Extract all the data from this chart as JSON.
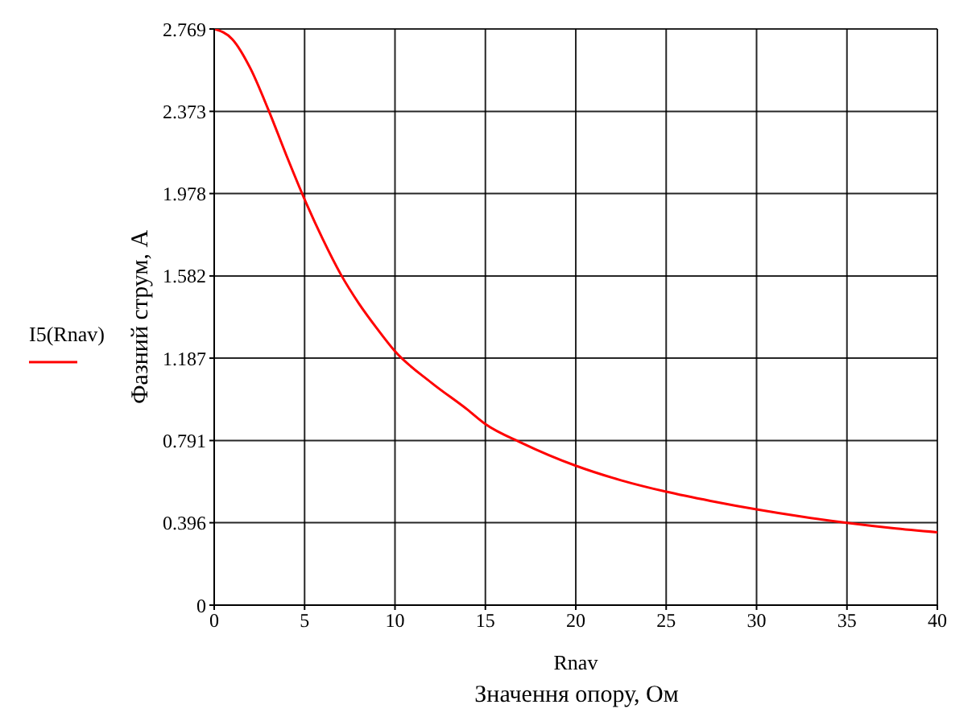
{
  "chart_data": {
    "type": "line",
    "xlabel": "Rnav",
    "ylabel": "Фазний струм, А",
    "annotations": [
      "Значення опору, Ом"
    ],
    "x": [
      0,
      1,
      2,
      3,
      4,
      5,
      6,
      7,
      8,
      9,
      10,
      12,
      14,
      15,
      17,
      20,
      22.5,
      25,
      27.5,
      30,
      32.5,
      35,
      37.5,
      40
    ],
    "series": [
      {
        "name": "I5(Rnav)",
        "color": "#ff0000",
        "values": [
          2.769,
          2.72,
          2.58,
          2.38,
          2.16,
          1.95,
          1.76,
          1.59,
          1.45,
          1.33,
          1.22,
          1.07,
          0.94,
          0.87,
          0.78,
          0.67,
          0.6,
          0.545,
          0.5,
          0.46,
          0.425,
          0.395,
          0.37,
          0.35
        ]
      }
    ],
    "xlim": [
      0,
      40
    ],
    "xticks": [
      0,
      5,
      10,
      15,
      20,
      25,
      30,
      35,
      40
    ],
    "ylim": [
      0,
      2.769
    ],
    "yticks": [
      0,
      0.396,
      0.791,
      1.187,
      1.582,
      1.978,
      2.373,
      2.769
    ],
    "grid": true,
    "legend": "left",
    "marker": "none",
    "line_style": "solid"
  }
}
